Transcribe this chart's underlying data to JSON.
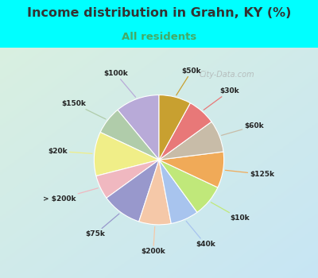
{
  "title": "Income distribution in Grahn, KY (%)",
  "subtitle": "All residents",
  "title_color": "#333333",
  "subtitle_color": "#44aa66",
  "bg_cyan": "#00ffff",
  "bg_chart_tl": "#d8efe8",
  "bg_chart_br": "#c8e8f0",
  "watermark": "City-Data.com",
  "labels": [
    "$100k",
    "$150k",
    "$20k",
    "> $200k",
    "$75k",
    "$200k",
    "$40k",
    "$10k",
    "$125k",
    "$60k",
    "$30k",
    "$50k"
  ],
  "values": [
    11,
    7,
    11,
    6,
    10,
    8,
    7,
    8,
    9,
    8,
    7,
    8
  ],
  "colors": [
    "#b8aad8",
    "#b0ccaa",
    "#f0ee88",
    "#f0b8c0",
    "#9898cc",
    "#f5c8a8",
    "#a8c4ee",
    "#c0e87a",
    "#f0aa58",
    "#c8bca8",
    "#e87878",
    "#c8a030"
  ],
  "startangle": 90,
  "figsize": [
    4.0,
    3.5
  ],
  "dpi": 100
}
